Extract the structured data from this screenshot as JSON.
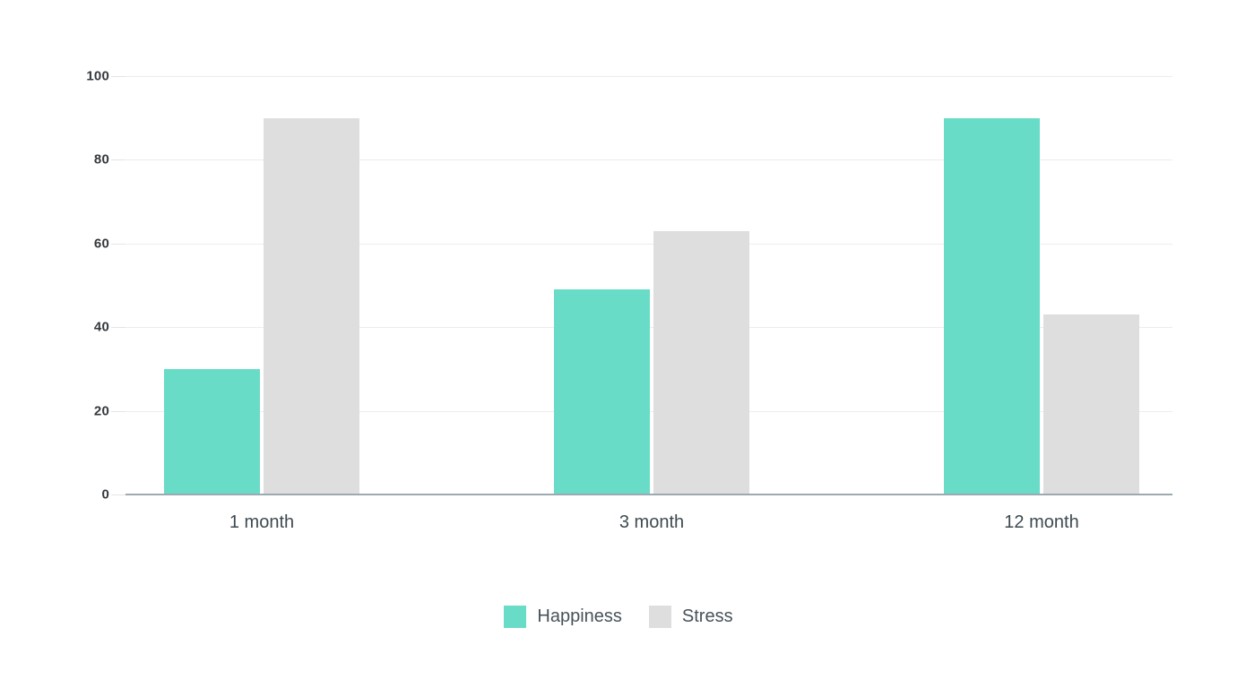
{
  "chart_data": {
    "type": "bar",
    "title": "",
    "xlabel": "",
    "ylabel": "",
    "categories": [
      "1 month",
      "3 month",
      "12 month"
    ],
    "series": [
      {
        "name": "Happiness",
        "color": "#69DCC8",
        "values": [
          30,
          49,
          90
        ]
      },
      {
        "name": "Stress",
        "color": "#DEDEDE",
        "values": [
          90,
          63,
          43
        ]
      }
    ],
    "ylim": [
      0,
      100
    ],
    "yticks": [
      0,
      20,
      40,
      60,
      80,
      100
    ],
    "grid": true,
    "legend_position": "bottom"
  },
  "colors": {
    "background": "#FFFFFF",
    "gridline": "#EDEDED",
    "axis_line": "#9CA9B0",
    "tick_label": "#33393D",
    "category_label": "#3E4A4F",
    "legend_label": "#47525A"
  }
}
